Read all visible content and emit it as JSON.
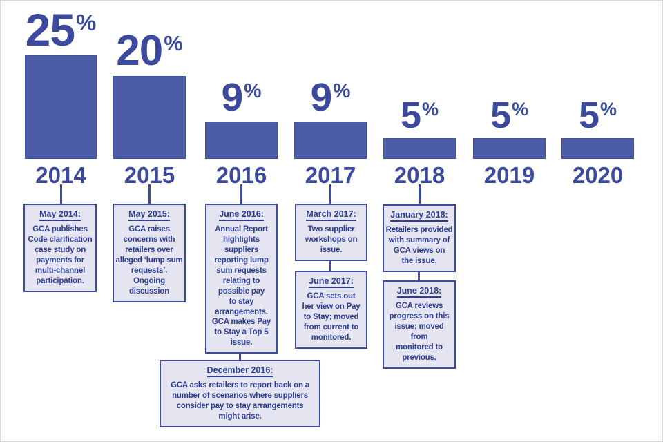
{
  "chart_data": {
    "type": "bar",
    "title": "",
    "xlabel": "",
    "ylabel": "",
    "categories": [
      "2014",
      "2015",
      "2016",
      "2017",
      "2018",
      "2019",
      "2020"
    ],
    "values": [
      25,
      20,
      9,
      9,
      5,
      5,
      5
    ],
    "value_suffix": "%",
    "ylim": [
      0,
      25
    ],
    "grid": false,
    "legend": false,
    "annotations": [
      {
        "year": "2014",
        "heading": "May 2014:",
        "body": "GCA publishes\nCode clarification\ncase study on\npayments for\nmulti-channel\nparticipation."
      },
      {
        "year": "2015",
        "heading": "May 2015:",
        "body": "GCA raises\nconcerns with\nretailers over\nalleged ‘lump sum\nrequests’.\nOngoing\ndiscussion"
      },
      {
        "year": "2016",
        "heading": "June 2016:",
        "body": "Annual Report\nhighlights\nsuppliers\nreporting lump\nsum requests\nrelating to\npossible pay\nto stay\narrangements.\nGCA makes Pay\nto Stay a Top 5\nissue."
      },
      {
        "year": "2017",
        "heading": "March 2017:",
        "body": "Two supplier\nworkshops on\nissue."
      },
      {
        "year": "2017",
        "heading": "June 2017:",
        "body": "GCA sets out\nher view on Pay\nto Stay; moved\nfrom current to\nmonitored."
      },
      {
        "year": "2018",
        "heading": "January 2018:",
        "body": "Retailers provided\nwith summary of\nGCA views on\nthe issue."
      },
      {
        "year": "2018",
        "heading": "June 2018:",
        "body": "GCA reviews\nprogress on this\nissue; moved from\nmonitored to\nprevious."
      },
      {
        "year": "2016",
        "heading": "December 2016:",
        "body": "GCA asks retailers to report back on a\nnumber of scenarios where suppliers\nconsider pay to stay arrangements\nmight arise."
      }
    ]
  },
  "colors": {
    "bar": "#4D5CA7",
    "bar_border": "#4050A0",
    "accent": "#3B4A9D",
    "box_bg": "#E4E5F1",
    "box_border": "#3E4B9B",
    "box_text": "#2E3D91",
    "line": "#3E4B9B"
  }
}
